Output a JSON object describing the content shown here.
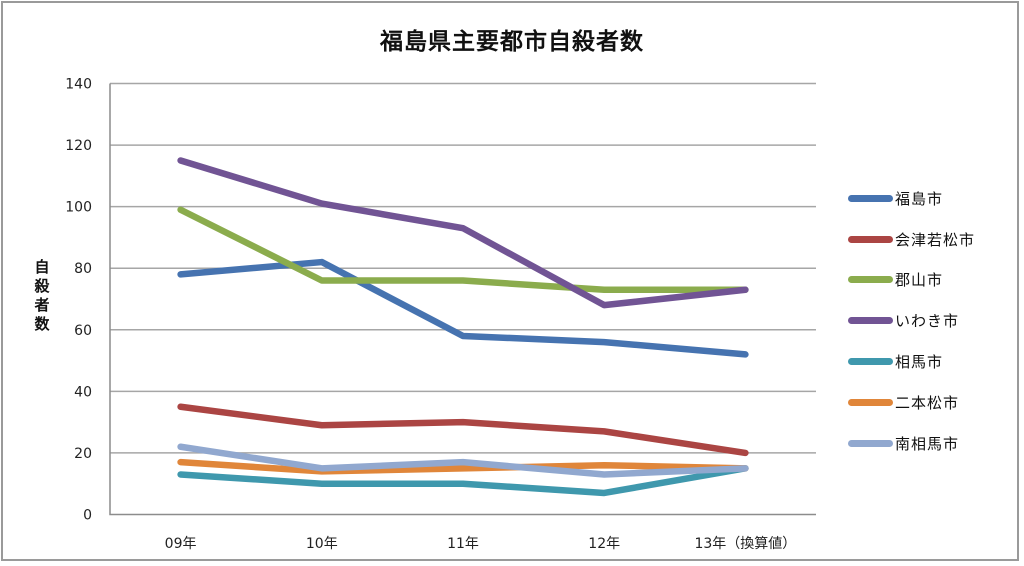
{
  "chart_data": {
    "type": "line",
    "title": "福島県主要都市自殺者数",
    "xlabel": "",
    "ylabel": "自殺者数",
    "categories": [
      "09年",
      "10年",
      "11年",
      "12年",
      "13年（換算値）"
    ],
    "ylim": [
      0,
      140
    ],
    "yticks": [
      0,
      20,
      40,
      60,
      80,
      100,
      120,
      140
    ],
    "grid": true,
    "legend_position": "right",
    "series": [
      {
        "name": "福島市",
        "color": "#4673b0",
        "values": [
          78,
          82,
          58,
          56,
          52
        ]
      },
      {
        "name": "会津若松市",
        "color": "#ab4543",
        "values": [
          35,
          29,
          30,
          27,
          20
        ]
      },
      {
        "name": "郡山市",
        "color": "#8bac4d",
        "values": [
          99,
          76,
          76,
          73,
          73
        ]
      },
      {
        "name": "いわき市",
        "color": "#715494",
        "values": [
          115,
          101,
          93,
          68,
          73
        ]
      },
      {
        "name": "相馬市",
        "color": "#3f98ad",
        "values": [
          13,
          10,
          10,
          7,
          15
        ]
      },
      {
        "name": "二本松市",
        "color": "#e0863a",
        "values": [
          17,
          14,
          15,
          16,
          15
        ]
      },
      {
        "name": "南相馬市",
        "color": "#91a8cf",
        "values": [
          22,
          15,
          17,
          13,
          15
        ]
      }
    ]
  }
}
